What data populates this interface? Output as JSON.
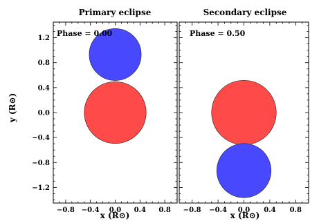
{
  "chart_data": [
    {
      "type": "scatter",
      "title": "Primary eclipse",
      "annotation": "Phase = 0.00",
      "xlabel": "x (R⊙)",
      "ylabel": "y (R⊙)",
      "xlim": [
        -1.0,
        1.0
      ],
      "ylim": [
        -1.45,
        1.45
      ],
      "xticks": [
        -0.8,
        -0.4,
        0.0,
        0.4,
        0.8
      ],
      "xtick_labels": [
        "−0.8",
        "−0.4",
        "0.0",
        "0.4",
        "0.8"
      ],
      "yticks": [
        -1.2,
        -0.8,
        -0.4,
        0.0,
        0.4,
        0.8,
        1.2
      ],
      "ytick_labels": [
        "−1.2",
        "−0.8",
        "−0.4",
        "0.0",
        "0.4",
        "0.8",
        "1.2"
      ],
      "grid": false,
      "series": [
        {
          "x": [
            0.0
          ],
          "y": [
            0.0
          ],
          "radius": 0.5,
          "color": "#ff4a4a"
        },
        {
          "x": [
            0.0
          ],
          "y": [
            0.93
          ],
          "radius": 0.42,
          "color": "#4848ff"
        }
      ]
    },
    {
      "type": "scatter",
      "title": "Secondary eclipse",
      "annotation": "Phase = 0.50",
      "xlabel": "x (R⊙)",
      "ylabel": "",
      "xlim": [
        -1.0,
        1.0
      ],
      "ylim": [
        -1.45,
        1.45
      ],
      "xticks": [
        -0.8,
        -0.4,
        0.0,
        0.4,
        0.8
      ],
      "xtick_labels": [
        "−0.8",
        "−0.4",
        "0.0",
        "0.4",
        "0.8"
      ],
      "yticks": [
        -1.2,
        -0.8,
        -0.4,
        0.0,
        0.4,
        0.8,
        1.2
      ],
      "ytick_labels": [],
      "grid": false,
      "series": [
        {
          "x": [
            0.0
          ],
          "y": [
            0.0
          ],
          "radius": 0.5,
          "color": "#ff4a4a"
        },
        {
          "x": [
            0.0
          ],
          "y": [
            -0.93
          ],
          "radius": 0.42,
          "color": "#4848ff"
        }
      ]
    }
  ]
}
